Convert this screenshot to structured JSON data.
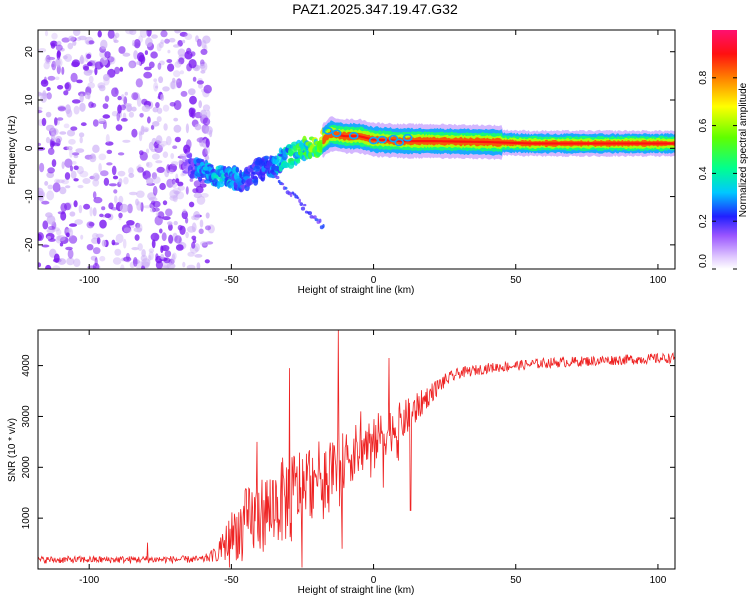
{
  "figure_title": "PAZ1.2025.347.19.47.G32",
  "colors": {
    "trace": "#ee2222",
    "scatter": "#7a18f0",
    "scatter_light": "#cdb0f6",
    "axis": "#000000"
  },
  "chart_data": [
    {
      "type": "heatmap",
      "title": "PAZ1.2025.347.19.47.G32",
      "xlabel": "Height of straight line (km)",
      "ylabel": "Frequency (Hz)",
      "xlim": [
        -118,
        106
      ],
      "ylim": [
        -25,
        24.5
      ],
      "xticks": [
        -100,
        -50,
        0,
        50,
        100
      ],
      "yticks": [
        -20,
        -10,
        0,
        10,
        20
      ],
      "colorbar": {
        "label": "Normalized spectral amplitude",
        "range": [
          0,
          1
        ],
        "ticks": [
          "0.0",
          "0.2",
          "0.4",
          "0.6",
          "0.8"
        ],
        "tick_values": [
          0,
          0.2,
          0.4,
          0.6,
          0.8
        ]
      },
      "regions": [
        {
          "name": "noise",
          "x_range": [
            -118,
            -57
          ],
          "freq_range": [
            -25,
            24.5
          ],
          "amplitude": 0.05
        },
        {
          "name": "transition",
          "x_range": [
            -66,
            -18
          ],
          "freq_start": -3,
          "freq_end": -6,
          "amplitude": 0.3
        },
        {
          "name": "stable",
          "x_range": [
            -15,
            106
          ],
          "freq_center": 1.5,
          "amplitude": 0.9
        }
      ],
      "tone_path": [
        {
          "x": -66,
          "freq": -3,
          "amp": 0.12
        },
        {
          "x": -60,
          "freq": -4.8,
          "amp": 0.3
        },
        {
          "x": -55,
          "freq": -5.5,
          "amp": 0.35
        },
        {
          "x": -50,
          "freq": -6.2,
          "amp": 0.3
        },
        {
          "x": -45,
          "freq": -6.8,
          "amp": 0.25
        },
        {
          "x": -40,
          "freq": -4.5,
          "amp": 0.22
        },
        {
          "x": -35,
          "freq": -3.5,
          "amp": 0.3
        },
        {
          "x": -30,
          "freq": -1.5,
          "amp": 0.38
        },
        {
          "x": -25,
          "freq": -0.5,
          "amp": 0.45
        },
        {
          "x": -20,
          "freq": 0.5,
          "amp": 0.55
        },
        {
          "x": -15,
          "freq": 3,
          "amp": 0.7
        },
        {
          "x": -10,
          "freq": 2.5,
          "amp": 0.85
        },
        {
          "x": -5,
          "freq": 2.5,
          "amp": 0.9
        },
        {
          "x": 0,
          "freq": 1.8,
          "amp": 0.85
        },
        {
          "x": 10,
          "freq": 1.5,
          "amp": 0.8
        },
        {
          "x": 20,
          "freq": 1.5,
          "amp": 0.88
        },
        {
          "x": 40,
          "freq": 1.3,
          "amp": 0.9
        },
        {
          "x": 55,
          "freq": 1.0,
          "amp": 0.95
        },
        {
          "x": 106,
          "freq": 1.0,
          "amp": 0.95
        }
      ]
    },
    {
      "type": "line",
      "xlabel": "Height of straight line (km)",
      "ylabel": "SNR (10 * v/v)",
      "xlim": [
        -118,
        106
      ],
      "ylim": [
        0,
        4700
      ],
      "xticks": [
        -100,
        -50,
        0,
        50,
        100
      ],
      "yticks": [
        1000,
        2000,
        3000,
        4000
      ],
      "envelope": [
        {
          "x": -118,
          "base": 180,
          "spread": 70
        },
        {
          "x": -60,
          "base": 190,
          "spread": 70
        },
        {
          "x": -55,
          "base": 300,
          "spread": 150
        },
        {
          "x": -50,
          "base": 650,
          "spread": 500
        },
        {
          "x": -45,
          "base": 900,
          "spread": 700
        },
        {
          "x": -40,
          "base": 1050,
          "spread": 750
        },
        {
          "x": -35,
          "base": 1250,
          "spread": 800
        },
        {
          "x": -30,
          "base": 1400,
          "spread": 900
        },
        {
          "x": -25,
          "base": 1650,
          "spread": 800
        },
        {
          "x": -20,
          "base": 1850,
          "spread": 650
        },
        {
          "x": -15,
          "base": 2050,
          "spread": 600
        },
        {
          "x": -10,
          "base": 2150,
          "spread": 550
        },
        {
          "x": -5,
          "base": 2350,
          "spread": 550
        },
        {
          "x": 0,
          "base": 2550,
          "spread": 500
        },
        {
          "x": 5,
          "base": 2700,
          "spread": 450
        },
        {
          "x": 10,
          "base": 2900,
          "spread": 400
        },
        {
          "x": 15,
          "base": 3150,
          "spread": 300
        },
        {
          "x": 20,
          "base": 3450,
          "spread": 200
        },
        {
          "x": 25,
          "base": 3700,
          "spread": 140
        },
        {
          "x": 30,
          "base": 3850,
          "spread": 110
        },
        {
          "x": 40,
          "base": 3950,
          "spread": 100
        },
        {
          "x": 50,
          "base": 4000,
          "spread": 100
        },
        {
          "x": 60,
          "base": 4050,
          "spread": 100
        },
        {
          "x": 80,
          "base": 4100,
          "spread": 100
        },
        {
          "x": 106,
          "base": 4150,
          "spread": 100
        }
      ],
      "spikes": [
        {
          "x": -79.5,
          "y": 520
        },
        {
          "x": -29.5,
          "y": 3950
        },
        {
          "x": -12.5,
          "y": 4700
        },
        {
          "x": 5.5,
          "y": 4150
        },
        {
          "x": -4.5,
          "y": 3100
        },
        {
          "x": -41,
          "y": 2500
        }
      ],
      "dips": [
        {
          "x": -11,
          "y": 400
        },
        {
          "x": 13,
          "y": 1150
        },
        {
          "x": 3.5,
          "y": 1600
        }
      ]
    }
  ]
}
